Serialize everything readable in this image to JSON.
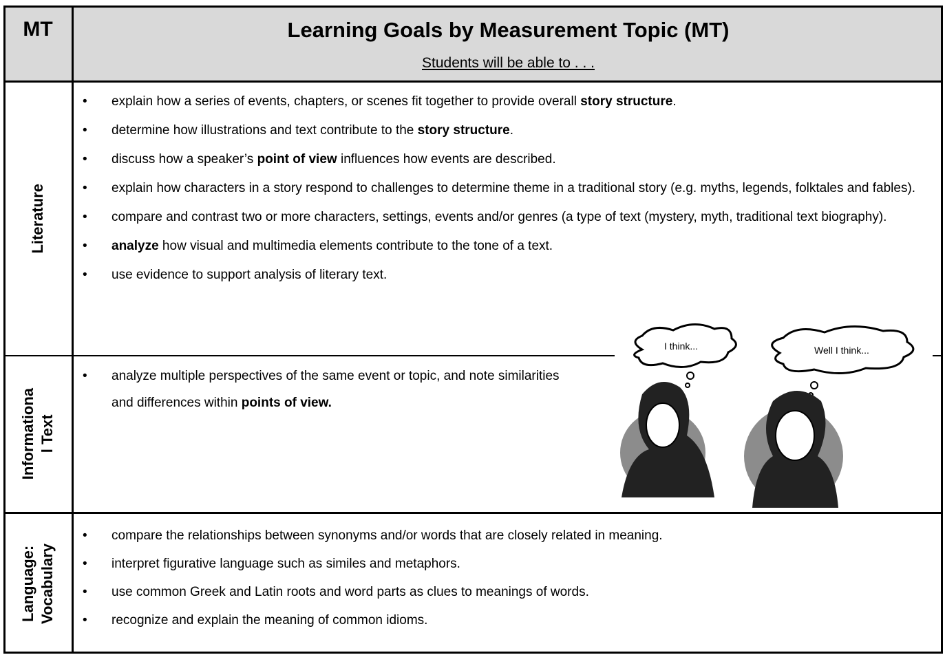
{
  "header": {
    "mt": "MT",
    "title": "Learning Goals by Measurement Topic (MT)",
    "subtitle": "Students will be able to . . ."
  },
  "rows": [
    {
      "topic": [
        "Literature"
      ],
      "goals": [
        [
          {
            "text": "explain how a series of events, chapters, or scenes fit together to provide overall "
          },
          {
            "text": "story structure",
            "bold": true
          },
          {
            "text": "."
          }
        ],
        [
          {
            "text": "determine how illustrations and text contribute to the "
          },
          {
            "text": "story structure",
            "bold": true
          },
          {
            "text": "."
          }
        ],
        [
          {
            "text": "discuss how a speaker’s "
          },
          {
            "text": "point of view",
            "bold": true
          },
          {
            "text": " influences how events are described."
          }
        ],
        [
          {
            "text": "explain how characters in a story respond to challenges to determine theme in a traditional story (e.g. myths, legends, folktales and fables)."
          }
        ],
        [
          {
            "text": "compare and contrast two or more characters, settings, events and/or genres (a type of text (mystery, myth, traditional text biography)."
          }
        ],
        [
          {
            "text": "analyze",
            "bold": true
          },
          {
            "text": " how visual and multimedia elements contribute to the tone of a text."
          }
        ],
        [
          {
            "text": "use evidence to support analysis of literary text."
          }
        ]
      ]
    },
    {
      "topic": [
        "Informationa",
        "l Text"
      ],
      "goals": [
        [
          {
            "text": "analyze multiple perspectives of the same event or topic, and note similarities and differences within "
          },
          {
            "text": "points of view.",
            "bold": true
          }
        ]
      ]
    },
    {
      "topic": [
        "Language:",
        "Vocabulary"
      ],
      "goals": [
        [
          {
            "text": "compare the relationships between synonyms and/or words that are closely related in meaning."
          }
        ],
        [
          {
            "text": "interpret figurative language such as similes and metaphors."
          }
        ],
        [
          {
            "text": "use common Greek and Latin roots and word parts as clues to meanings of words."
          }
        ],
        [
          {
            "text": "recognize and explain the meaning of common idioms."
          }
        ]
      ]
    }
  ],
  "illustration": {
    "bubbles": [
      "I think...",
      "Well I think..."
    ]
  }
}
